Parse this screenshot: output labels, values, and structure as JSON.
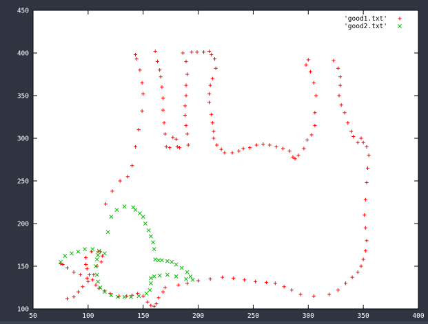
{
  "chart_data": {
    "type": "scatter",
    "title": "",
    "xlabel": "",
    "ylabel": "",
    "xlim": [
      50,
      400
    ],
    "ylim": [
      100,
      450
    ],
    "x_ticks": [
      50,
      100,
      150,
      200,
      250,
      300,
      350,
      400
    ],
    "y_ticks": [
      100,
      150,
      200,
      250,
      300,
      350,
      400,
      450
    ],
    "legend_position": "top-right",
    "grid": false,
    "series": [
      {
        "name": "'good1.txt'",
        "marker": "+",
        "color": "#ff0000",
        "points": [
          [
            143,
            398
          ],
          [
            144,
            393
          ],
          [
            147,
            380
          ],
          [
            149,
            365
          ],
          [
            150,
            352
          ],
          [
            149,
            332
          ],
          [
            146,
            310
          ],
          [
            143,
            290
          ],
          [
            140,
            268
          ],
          [
            136,
            255
          ],
          [
            129,
            250
          ],
          [
            122,
            238
          ],
          [
            116,
            223
          ],
          [
            161,
            402
          ],
          [
            163,
            390
          ],
          [
            165,
            380
          ],
          [
            166,
            372
          ],
          [
            167,
            360
          ],
          [
            168,
            347
          ],
          [
            168,
            333
          ],
          [
            169,
            318
          ],
          [
            170,
            305
          ],
          [
            171,
            290
          ],
          [
            174,
            289
          ],
          [
            186,
            400
          ],
          [
            189,
            390
          ],
          [
            190,
            375
          ],
          [
            189,
            362
          ],
          [
            189,
            350
          ],
          [
            188,
            338
          ],
          [
            188,
            327
          ],
          [
            189,
            315
          ],
          [
            190,
            305
          ],
          [
            191,
            292
          ],
          [
            183,
            289
          ],
          [
            181,
            290
          ],
          [
            180,
            299
          ],
          [
            177,
            301
          ],
          [
            194,
            401
          ],
          [
            199,
            401
          ],
          [
            205,
            401
          ],
          [
            210,
            402
          ],
          [
            212,
            398
          ],
          [
            215,
            393
          ],
          [
            216,
            382
          ],
          [
            213,
            370
          ],
          [
            211,
            362
          ],
          [
            210,
            352
          ],
          [
            210,
            342
          ],
          [
            212,
            328
          ],
          [
            213,
            318
          ],
          [
            214,
            308
          ],
          [
            214,
            300
          ],
          [
            217,
            292
          ],
          [
            221,
            287
          ],
          [
            224,
            283
          ],
          [
            231,
            283
          ],
          [
            237,
            285
          ],
          [
            241,
            288
          ],
          [
            247,
            289
          ],
          [
            253,
            292
          ],
          [
            259,
            293
          ],
          [
            265,
            292
          ],
          [
            271,
            290
          ],
          [
            277,
            288
          ],
          [
            283,
            285
          ],
          [
            286,
            278
          ],
          [
            288,
            276
          ],
          [
            291,
            280
          ],
          [
            296,
            288
          ],
          [
            299,
            298
          ],
          [
            303,
            304
          ],
          [
            306,
            315
          ],
          [
            306,
            330
          ],
          [
            307,
            350
          ],
          [
            305,
            365
          ],
          [
            302,
            378
          ],
          [
            300,
            392
          ],
          [
            298,
            386
          ],
          [
            323,
            391
          ],
          [
            327,
            382
          ],
          [
            329,
            372
          ],
          [
            329,
            362
          ],
          [
            328,
            350
          ],
          [
            330,
            339
          ],
          [
            333,
            330
          ],
          [
            336,
            318
          ],
          [
            339,
            308
          ],
          [
            341,
            302
          ],
          [
            345,
            295
          ],
          [
            348,
            300
          ],
          [
            350,
            295
          ],
          [
            353,
            290
          ],
          [
            355,
            280
          ],
          [
            354,
            265
          ],
          [
            353,
            248
          ],
          [
            352,
            228
          ],
          [
            351,
            210
          ],
          [
            352,
            195
          ],
          [
            353,
            180
          ],
          [
            352,
            168
          ],
          [
            350,
            158
          ],
          [
            348,
            150
          ],
          [
            345,
            143
          ],
          [
            340,
            137
          ],
          [
            334,
            130
          ],
          [
            327,
            122
          ],
          [
            319,
            117
          ],
          [
            305,
            115
          ],
          [
            293,
            117
          ],
          [
            285,
            122
          ],
          [
            278,
            126
          ],
          [
            270,
            130
          ],
          [
            262,
            131
          ],
          [
            252,
            132
          ],
          [
            242,
            134
          ],
          [
            232,
            136
          ],
          [
            222,
            137
          ],
          [
            211,
            135
          ],
          [
            200,
            133
          ],
          [
            190,
            130
          ],
          [
            182,
            128
          ],
          [
            170,
            125
          ],
          [
            168,
            120
          ],
          [
            164,
            113
          ],
          [
            162,
            106
          ],
          [
            160,
            103
          ],
          [
            157,
            104
          ],
          [
            154,
            108
          ],
          [
            150,
            115
          ],
          [
            145,
            118
          ],
          [
            140,
            116
          ],
          [
            135,
            115
          ],
          [
            128,
            115
          ],
          [
            120,
            118
          ],
          [
            115,
            121
          ],
          [
            110,
            124
          ],
          [
            107,
            128
          ],
          [
            104,
            134
          ],
          [
            101,
            140
          ],
          [
            99,
            147
          ],
          [
            98,
            152
          ],
          [
            98,
            160
          ],
          [
            103,
            167
          ],
          [
            109,
            167
          ],
          [
            111,
            167
          ],
          [
            113,
            162
          ],
          [
            112,
            155
          ],
          [
            108,
            150
          ],
          [
            105,
            140
          ],
          [
            100,
            132
          ],
          [
            95,
            126
          ],
          [
            91,
            120
          ],
          [
            87,
            114
          ],
          [
            81,
            112
          ],
          [
            75,
            153
          ],
          [
            77,
            152
          ],
          [
            81,
            148
          ],
          [
            87,
            143
          ],
          [
            93,
            140
          ],
          [
            99,
            136
          ]
        ]
      },
      {
        "name": "'good2.txt'",
        "marker": "x",
        "color": "#00c000",
        "points": [
          [
            75,
            155
          ],
          [
            79,
            162
          ],
          [
            85,
            165
          ],
          [
            91,
            167
          ],
          [
            97,
            170
          ],
          [
            104,
            170
          ],
          [
            110,
            168
          ],
          [
            115,
            165
          ],
          [
            118,
            190
          ],
          [
            121,
            208
          ],
          [
            126,
            216
          ],
          [
            133,
            220
          ],
          [
            141,
            219
          ],
          [
            143,
            216
          ],
          [
            147,
            212
          ],
          [
            150,
            208
          ],
          [
            152,
            200
          ],
          [
            155,
            192
          ],
          [
            157,
            185
          ],
          [
            159,
            178
          ],
          [
            160,
            170
          ],
          [
            161,
            158
          ],
          [
            164,
            157
          ],
          [
            167,
            157
          ],
          [
            172,
            156
          ],
          [
            176,
            155
          ],
          [
            180,
            152
          ],
          [
            185,
            148
          ],
          [
            190,
            143
          ],
          [
            193,
            138
          ],
          [
            195,
            134
          ],
          [
            189,
            135
          ],
          [
            180,
            138
          ],
          [
            172,
            140
          ],
          [
            165,
            139
          ],
          [
            160,
            138
          ],
          [
            157,
            136
          ],
          [
            157,
            130
          ],
          [
            156,
            122
          ],
          [
            153,
            118
          ],
          [
            146,
            115
          ],
          [
            139,
            114
          ],
          [
            133,
            114
          ],
          [
            127,
            114
          ],
          [
            121,
            116
          ],
          [
            115,
            120
          ],
          [
            111,
            125
          ],
          [
            109,
            132
          ],
          [
            108,
            140
          ],
          [
            107,
            150
          ],
          [
            108,
            158
          ],
          [
            109,
            163
          ]
        ]
      }
    ]
  }
}
